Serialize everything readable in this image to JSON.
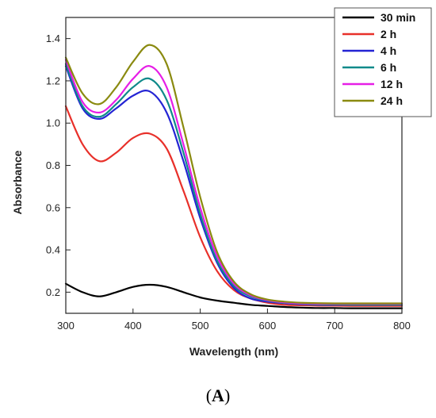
{
  "panel": {
    "open": "(",
    "letter": "A",
    "close": ")"
  },
  "chart_data": {
    "type": "line",
    "xlabel": "Wavelength (nm)",
    "ylabel": "Absorbance",
    "xlim": [
      300,
      800
    ],
    "ylim": [
      0.1,
      1.5
    ],
    "xticks": [
      300,
      400,
      500,
      600,
      700,
      800
    ],
    "yticks": [
      0.2,
      0.4,
      0.6,
      0.8,
      1.0,
      1.2,
      1.4
    ],
    "ytick_labels": [
      "0.2",
      "0.4",
      "0.6",
      "0.8",
      "1.0",
      "1.2",
      "1.4"
    ],
    "grid": false,
    "legend_position": "top-right",
    "x": [
      300,
      325,
      350,
      375,
      400,
      425,
      450,
      475,
      500,
      525,
      550,
      575,
      600,
      625,
      650,
      675,
      700,
      725,
      750,
      775,
      800
    ],
    "series": [
      {
        "name": "30 min",
        "color": "#000000",
        "values": [
          0.24,
          0.2,
          0.18,
          0.2,
          0.225,
          0.235,
          0.225,
          0.2,
          0.175,
          0.16,
          0.15,
          0.14,
          0.135,
          0.13,
          0.127,
          0.125,
          0.125,
          0.124,
          0.124,
          0.124,
          0.124
        ]
      },
      {
        "name": "2 h",
        "color": "#e8302a",
        "values": [
          1.08,
          0.9,
          0.82,
          0.86,
          0.93,
          0.95,
          0.88,
          0.68,
          0.46,
          0.3,
          0.21,
          0.17,
          0.15,
          0.14,
          0.138,
          0.136,
          0.136,
          0.135,
          0.135,
          0.135,
          0.135
        ]
      },
      {
        "name": "4 h",
        "color": "#2424d4",
        "values": [
          1.27,
          1.07,
          1.02,
          1.07,
          1.13,
          1.15,
          1.05,
          0.82,
          0.55,
          0.34,
          0.22,
          0.17,
          0.155,
          0.148,
          0.143,
          0.14,
          0.14,
          0.14,
          0.14,
          0.14,
          0.14
        ]
      },
      {
        "name": "6 h",
        "color": "#0f8a8a",
        "values": [
          1.28,
          1.08,
          1.03,
          1.09,
          1.17,
          1.21,
          1.11,
          0.86,
          0.57,
          0.35,
          0.23,
          0.18,
          0.16,
          0.15,
          0.145,
          0.142,
          0.142,
          0.141,
          0.141,
          0.141,
          0.141
        ]
      },
      {
        "name": "12 h",
        "color": "#e61ee6",
        "values": [
          1.3,
          1.1,
          1.05,
          1.11,
          1.21,
          1.27,
          1.17,
          0.9,
          0.6,
          0.37,
          0.24,
          0.185,
          0.162,
          0.152,
          0.147,
          0.145,
          0.145,
          0.145,
          0.145,
          0.145,
          0.145
        ]
      },
      {
        "name": "24 h",
        "color": "#8a8a10",
        "values": [
          1.31,
          1.14,
          1.09,
          1.17,
          1.29,
          1.37,
          1.28,
          0.98,
          0.65,
          0.39,
          0.25,
          0.19,
          0.165,
          0.155,
          0.15,
          0.148,
          0.147,
          0.147,
          0.147,
          0.147,
          0.147
        ]
      }
    ]
  }
}
